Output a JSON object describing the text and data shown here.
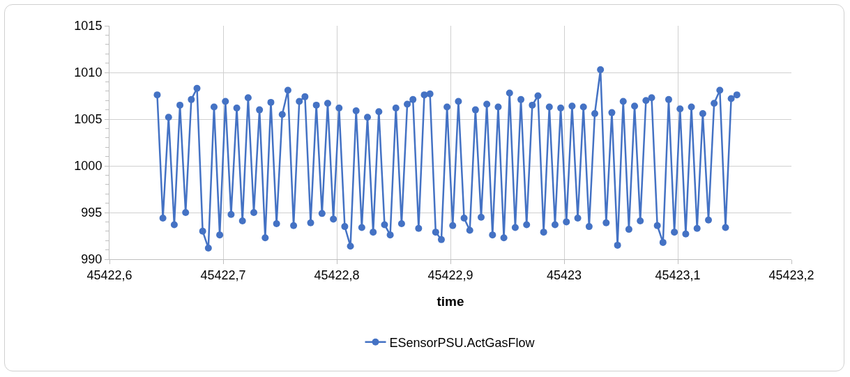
{
  "chart_data": {
    "type": "line",
    "xlabel": "time",
    "marker": "circle",
    "line_style": "solid",
    "grid": true,
    "legend": "bottom",
    "xlim": [
      45422.6,
      45423.2
    ],
    "xticks": [
      {
        "value": 45422.6,
        "label": "45422,6"
      },
      {
        "value": 45422.7,
        "label": "45422,7"
      },
      {
        "value": 45422.8,
        "label": "45422,8"
      },
      {
        "value": 45422.9,
        "label": "45422,9"
      },
      {
        "value": 45423,
        "label": "45423"
      },
      {
        "value": 45423.1,
        "label": "45423,1"
      },
      {
        "value": 45423.2,
        "label": "45423,2"
      }
    ],
    "ylim": [
      990,
      1015
    ],
    "yticks": [
      990,
      995,
      1000,
      1005,
      1010,
      1015
    ],
    "x": [
      45422.642,
      45422.647,
      45422.652,
      45422.657,
      45422.662,
      45422.667,
      45422.672,
      45422.677,
      45422.682,
      45422.687,
      45422.692,
      45422.697,
      45422.702,
      45422.707,
      45422.712,
      45422.717,
      45422.722,
      45422.727,
      45422.732,
      45422.737,
      45422.742,
      45422.747,
      45422.752,
      45422.757,
      45422.762,
      45422.767,
      45422.772,
      45422.777,
      45422.782,
      45422.787,
      45422.792,
      45422.797,
      45422.802,
      45422.807,
      45422.812,
      45422.817,
      45422.822,
      45422.827,
      45422.832,
      45422.837,
      45422.842,
      45422.847,
      45422.852,
      45422.857,
      45422.862,
      45422.867,
      45422.872,
      45422.877,
      45422.882,
      45422.887,
      45422.892,
      45422.897,
      45422.902,
      45422.907,
      45422.912,
      45422.917,
      45422.922,
      45422.927,
      45422.932,
      45422.937,
      45422.942,
      45422.947,
      45422.952,
      45422.957,
      45422.962,
      45422.967,
      45422.972,
      45422.977,
      45422.982,
      45422.987,
      45422.992,
      45422.997,
      45423.002,
      45423.007,
      45423.012,
      45423.017,
      45423.022,
      45423.027,
      45423.032,
      45423.037,
      45423.042,
      45423.047,
      45423.052,
      45423.057,
      45423.062,
      45423.067,
      45423.072,
      45423.077,
      45423.082,
      45423.087,
      45423.092,
      45423.097,
      45423.102,
      45423.107,
      45423.112,
      45423.117,
      45423.122,
      45423.127,
      45423.132,
      45423.137,
      45423.142,
      45423.147,
      45423.152
    ],
    "series": [
      {
        "name": "ESensorPSU.ActGasFlow",
        "color": "#4472c4",
        "values": [
          1007.6,
          994.4,
          1005.2,
          993.7,
          1006.5,
          995.0,
          1007.1,
          1008.3,
          993.0,
          991.2,
          1006.3,
          992.6,
          1006.9,
          994.8,
          1006.2,
          994.1,
          1007.3,
          995.0,
          1006.0,
          992.3,
          1006.8,
          993.8,
          1005.5,
          1008.1,
          993.6,
          1006.9,
          1007.4,
          993.9,
          1006.5,
          994.9,
          1006.7,
          994.3,
          1006.2,
          993.5,
          991.4,
          1005.9,
          993.4,
          1005.2,
          992.9,
          1005.8,
          993.7,
          992.6,
          1006.2,
          993.8,
          1006.6,
          1007.1,
          993.3,
          1007.6,
          1007.7,
          992.9,
          992.1,
          1006.3,
          993.6,
          1006.9,
          994.4,
          993.1,
          1006.0,
          994.5,
          1006.6,
          992.6,
          1006.3,
          992.3,
          1007.8,
          993.4,
          1007.1,
          993.7,
          1006.5,
          1007.5,
          992.9,
          1006.3,
          993.7,
          1006.2,
          994.0,
          1006.4,
          994.4,
          1006.3,
          993.5,
          1005.6,
          1010.3,
          993.9,
          1005.7,
          991.5,
          1006.9,
          993.2,
          1006.4,
          994.1,
          1007.0,
          1007.3,
          993.6,
          991.8,
          1007.1,
          992.9,
          1006.1,
          992.7,
          1006.3,
          993.3,
          1005.6,
          994.2,
          1006.7,
          1008.1,
          993.4,
          1007.2,
          1007.6
        ]
      }
    ]
  }
}
